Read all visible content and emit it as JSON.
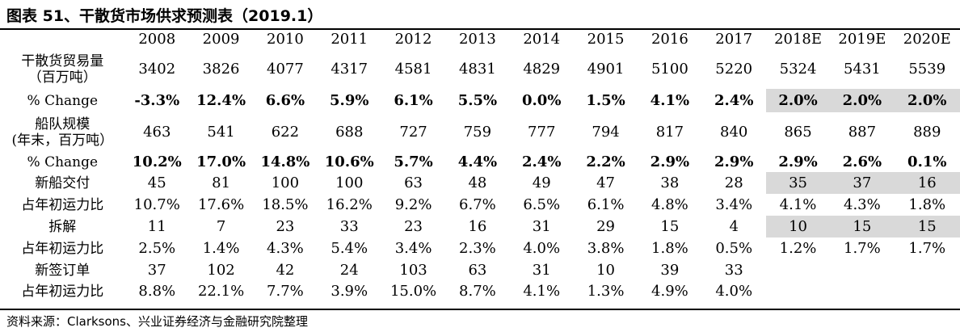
{
  "title": "图表 51、干散货市场供求预测表（2019.1）",
  "source": "资料来源：Clarksons、兴业证券经济与金融研究院整理",
  "chart_data": {
    "type": "table",
    "columns": [
      "2008",
      "2009",
      "2010",
      "2011",
      "2012",
      "2013",
      "2014",
      "2015",
      "2016",
      "2017",
      "2018E",
      "2019E",
      "2020E"
    ],
    "rows": [
      {
        "label": "干散货贸易量\n（百万吨）",
        "values": [
          "3402",
          "3826",
          "4077",
          "4317",
          "4581",
          "4831",
          "4829",
          "4901",
          "5100",
          "5220",
          "5324",
          "5431",
          "5539"
        ],
        "bold": false,
        "shade_from": null
      },
      {
        "label": "% Change",
        "values": [
          "-3.3%",
          "12.4%",
          "6.6%",
          "5.9%",
          "6.1%",
          "5.5%",
          "0.0%",
          "1.5%",
          "4.1%",
          "2.4%",
          "2.0%",
          "2.0%",
          "2.0%"
        ],
        "bold": true,
        "shade_from": 10
      },
      {
        "label": "船队规模\n(年末，百万吨）",
        "values": [
          "463",
          "541",
          "622",
          "688",
          "727",
          "759",
          "777",
          "794",
          "817",
          "840",
          "865",
          "887",
          "889"
        ],
        "bold": false,
        "shade_from": null
      },
      {
        "label": "% Change",
        "values": [
          "10.2%",
          "17.0%",
          "14.8%",
          "10.6%",
          "5.7%",
          "4.4%",
          "2.4%",
          "2.2%",
          "2.9%",
          "2.9%",
          "2.9%",
          "2.6%",
          "0.1%"
        ],
        "bold": true,
        "shade_from": null
      },
      {
        "label": "新船交付",
        "values": [
          "45",
          "81",
          "100",
          "100",
          "63",
          "48",
          "49",
          "47",
          "38",
          "28",
          "35",
          "37",
          "16"
        ],
        "bold": false,
        "shade_from": 10
      },
      {
        "label": "占年初运力比",
        "values": [
          "10.7%",
          "17.6%",
          "18.5%",
          "16.2%",
          "9.2%",
          "6.7%",
          "6.5%",
          "6.1%",
          "4.8%",
          "3.4%",
          "4.1%",
          "4.3%",
          "1.8%"
        ],
        "bold": false,
        "shade_from": null
      },
      {
        "label": "拆解",
        "values": [
          "11",
          "7",
          "23",
          "33",
          "23",
          "16",
          "31",
          "29",
          "15",
          "4",
          "10",
          "15",
          "15"
        ],
        "bold": false,
        "shade_from": 10
      },
      {
        "label": "占年初运力比",
        "values": [
          "2.5%",
          "1.4%",
          "4.3%",
          "5.4%",
          "3.4%",
          "2.3%",
          "4.0%",
          "3.8%",
          "1.8%",
          "0.5%",
          "1.2%",
          "1.7%",
          "1.7%"
        ],
        "bold": false,
        "shade_from": null
      },
      {
        "label": "新签订单",
        "values": [
          "37",
          "102",
          "42",
          "24",
          "103",
          "63",
          "31",
          "10",
          "39",
          "33",
          "",
          "",
          ""
        ],
        "bold": false,
        "shade_from": null
      },
      {
        "label": "占年初运力比",
        "values": [
          "8.8%",
          "22.1%",
          "7.7%",
          "3.9%",
          "15.0%",
          "8.7%",
          "4.1%",
          "1.3%",
          "4.9%",
          "4.0%",
          "",
          "",
          ""
        ],
        "bold": false,
        "shade_from": null
      }
    ],
    "shade_color": "#d9d9d9"
  }
}
